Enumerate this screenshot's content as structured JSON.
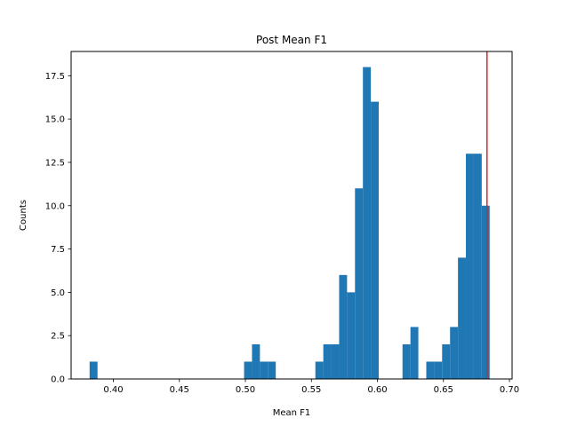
{
  "chart_data": {
    "type": "bar",
    "title": "Post Mean F1",
    "xlabel": "Mean F1",
    "ylabel": "Counts",
    "xlim": [
      0.368,
      0.702
    ],
    "ylim": [
      0,
      18.9
    ],
    "xticks": [
      0.4,
      0.45,
      0.5,
      0.55,
      0.6,
      0.65,
      0.7
    ],
    "xtick_labels": [
      "0.40",
      "0.45",
      "0.50",
      "0.55",
      "0.60",
      "0.65",
      "0.70"
    ],
    "yticks": [
      0.0,
      2.5,
      5.0,
      7.5,
      10.0,
      12.5,
      15.0,
      17.5
    ],
    "ytick_labels": [
      "0.0",
      "2.5",
      "5.0",
      "7.5",
      "10.0",
      "12.5",
      "15.0",
      "17.5"
    ],
    "bin_width": 0.006,
    "bins": [
      {
        "x": 0.382,
        "count": 1
      },
      {
        "x": 0.499,
        "count": 1
      },
      {
        "x": 0.505,
        "count": 2
      },
      {
        "x": 0.511,
        "count": 1
      },
      {
        "x": 0.517,
        "count": 1
      },
      {
        "x": 0.553,
        "count": 1
      },
      {
        "x": 0.559,
        "count": 2
      },
      {
        "x": 0.565,
        "count": 2
      },
      {
        "x": 0.571,
        "count": 6
      },
      {
        "x": 0.577,
        "count": 5
      },
      {
        "x": 0.583,
        "count": 11
      },
      {
        "x": 0.589,
        "count": 18
      },
      {
        "x": 0.595,
        "count": 16
      },
      {
        "x": 0.619,
        "count": 2
      },
      {
        "x": 0.625,
        "count": 3
      },
      {
        "x": 0.637,
        "count": 1
      },
      {
        "x": 0.643,
        "count": 1
      },
      {
        "x": 0.649,
        "count": 2
      },
      {
        "x": 0.655,
        "count": 3
      },
      {
        "x": 0.661,
        "count": 7
      },
      {
        "x": 0.667,
        "count": 13
      },
      {
        "x": 0.673,
        "count": 13
      },
      {
        "x": 0.679,
        "count": 10
      }
    ],
    "reference_line": {
      "x": 0.683,
      "color": "#d62728"
    },
    "bar_color": "#1f77b4",
    "grid": false
  }
}
